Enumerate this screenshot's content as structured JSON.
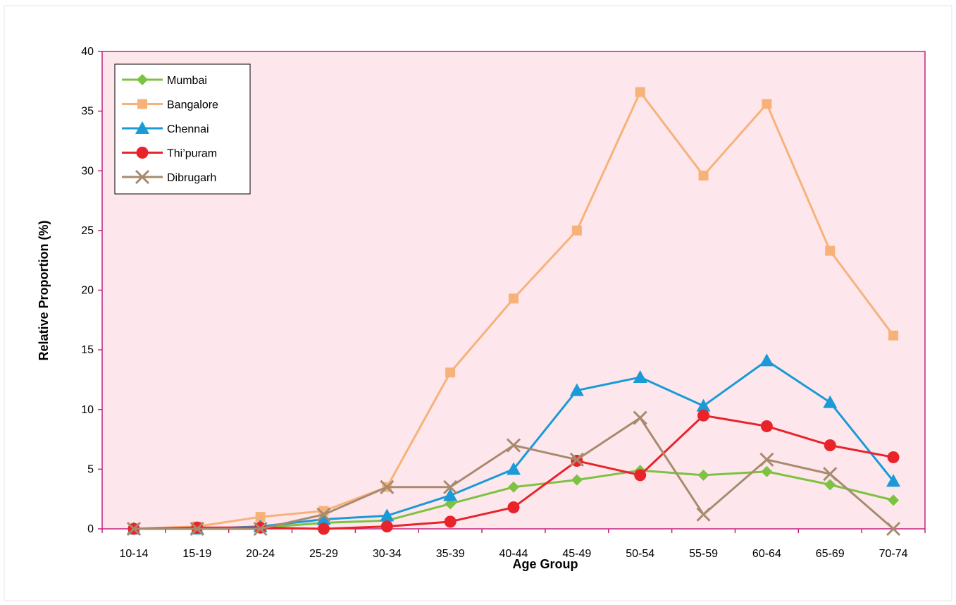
{
  "chart_data": {
    "type": "line",
    "title": "",
    "xlabel": "Age Group",
    "ylabel": "Relative Proportion (%)",
    "categories": [
      "10-14",
      "15-19",
      "20-24",
      "25-29",
      "30-34",
      "35-39",
      "40-44",
      "45-49",
      "50-54",
      "55-59",
      "60-64",
      "65-69",
      "70-74"
    ],
    "ylim": [
      0,
      40
    ],
    "yticks": [
      "0",
      "5",
      "10",
      "15",
      "20",
      "25",
      "30",
      "35",
      "40"
    ],
    "grid": false,
    "legend_position": "top-left",
    "series": [
      {
        "name": "Mumbai",
        "color": "#7dc242",
        "marker": "diamond",
        "values": [
          0,
          0,
          0.1,
          0.5,
          0.7,
          2.1,
          3.5,
          4.1,
          4.9,
          4.5,
          4.8,
          3.7,
          2.4
        ]
      },
      {
        "name": "Bangalore",
        "color": "#f7b27a",
        "marker": "square",
        "values": [
          0,
          0.2,
          1.0,
          1.5,
          3.5,
          13.1,
          19.3,
          25.0,
          36.6,
          29.6,
          35.6,
          23.3,
          16.2
        ]
      },
      {
        "name": "Chennai",
        "color": "#1a9ad6",
        "marker": "triangle",
        "values": [
          0,
          0,
          0.2,
          0.8,
          1.1,
          2.8,
          5.0,
          11.6,
          12.7,
          10.3,
          14.1,
          10.6,
          4.0
        ]
      },
      {
        "name": "Thi’puram",
        "color": "#e8232a",
        "marker": "circle",
        "values": [
          0,
          0.1,
          0.1,
          0,
          0.2,
          0.6,
          1.8,
          5.7,
          4.5,
          9.5,
          8.6,
          7.0,
          6.0
        ]
      },
      {
        "name": "Dibrugarh",
        "color": "#a88b6e",
        "marker": "x",
        "values": [
          0,
          0,
          0,
          1.2,
          3.5,
          3.5,
          7.0,
          5.8,
          9.3,
          1.2,
          5.8,
          4.6,
          0
        ]
      }
    ]
  },
  "colors": {
    "plot_background": "#fde7ec",
    "plot_border": "#c2237e",
    "outer_border": "#e6e6e6"
  }
}
